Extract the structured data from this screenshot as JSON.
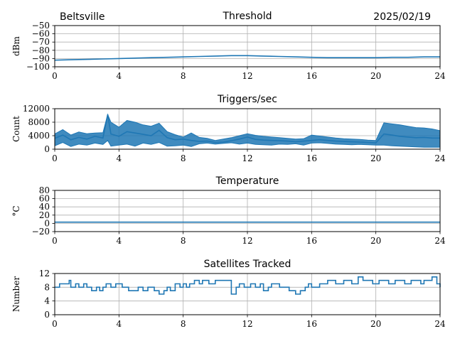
{
  "header": {
    "site": "Beltsville",
    "date": "2025/02/19"
  },
  "series_color": "#1f77b4",
  "grid_color": "#b0b0b0",
  "chart_data": [
    {
      "type": "line",
      "title": "Threshold",
      "xlabel": "",
      "ylabel": "dBm",
      "xlim": [
        0,
        24
      ],
      "ylim": [
        -100,
        -50
      ],
      "xticks": [
        0,
        4,
        8,
        12,
        16,
        20,
        24
      ],
      "yticks": [
        -100,
        -90,
        -80,
        -70,
        -60,
        -50
      ],
      "yticklabels": [
        "−100",
        "−90",
        "−80",
        "−70",
        "−60",
        "−50"
      ],
      "grid": true,
      "x": [
        0,
        1,
        2,
        3,
        4,
        5,
        6,
        7,
        8,
        9,
        10,
        11,
        12,
        13,
        14,
        15,
        16,
        17,
        18,
        19,
        20,
        21,
        22,
        23,
        24
      ],
      "y": [
        -92,
        -91.5,
        -91,
        -90.5,
        -90,
        -89.5,
        -89,
        -88.5,
        -88,
        -87.5,
        -87,
        -86.5,
        -86.5,
        -87,
        -87.5,
        -88,
        -88.5,
        -89,
        -89,
        -89,
        -89,
        -88.5,
        -88.5,
        -88,
        -88
      ]
    },
    {
      "type": "line",
      "title": "Triggers/sec",
      "xlabel": "",
      "ylabel": "Count",
      "xlim": [
        0,
        24
      ],
      "ylim": [
        0,
        12000
      ],
      "xticks": [
        0,
        4,
        8,
        12,
        16,
        20,
        24
      ],
      "yticks": [
        0,
        4000,
        8000,
        12000
      ],
      "yticklabels": [
        "0",
        "4000",
        "8000",
        "12000"
      ],
      "grid": true,
      "x": [
        0,
        0.5,
        1,
        1.5,
        2,
        2.5,
        3,
        3.3,
        3.5,
        4,
        4.5,
        5,
        5.5,
        6,
        6.5,
        7,
        7.5,
        8,
        8.5,
        9,
        9.5,
        10,
        10.5,
        11,
        11.5,
        12,
        12.5,
        13,
        13.5,
        14,
        14.5,
        15,
        15.5,
        16,
        16.5,
        17,
        17.5,
        18,
        18.5,
        19,
        19.5,
        20,
        20.5,
        21,
        21.5,
        22,
        22.5,
        23,
        23.5,
        24
      ],
      "y": [
        3200,
        4200,
        2800,
        3500,
        3000,
        3800,
        3300,
        10300,
        4500,
        3800,
        5200,
        4800,
        4400,
        4000,
        5600,
        3400,
        2800,
        3000,
        2600,
        2300,
        2400,
        2000,
        2100,
        2500,
        3000,
        3600,
        2900,
        2700,
        2600,
        2500,
        2400,
        2200,
        2400,
        2600,
        2800,
        2600,
        2400,
        2300,
        2200,
        2100,
        2000,
        1900,
        4500,
        4200,
        3800,
        3600,
        3400,
        3500,
        3300,
        3300
      ],
      "ymin_band": [
        1000,
        2000,
        800,
        1500,
        1200,
        1800,
        1400,
        2600,
        900,
        1200,
        1500,
        900,
        1800,
        1400,
        2000,
        900,
        1000,
        1200,
        800,
        1600,
        1800,
        1500,
        1700,
        1900,
        1500,
        1800,
        1400,
        1300,
        1200,
        1500,
        1400,
        1600,
        1200,
        1800,
        1900,
        1700,
        1500,
        1400,
        1300,
        1400,
        1300,
        1200,
        1200,
        1000,
        900,
        800,
        700,
        600,
        600,
        600
      ],
      "ymax_band": [
        4500,
        5800,
        4200,
        5100,
        4600,
        4800,
        4900,
        10300,
        8000,
        6500,
        8500,
        8000,
        7200,
        6800,
        7700,
        5200,
        4300,
        3600,
        4800,
        3500,
        3200,
        2600,
        3000,
        3400,
        4000,
        4600,
        4100,
        3800,
        3600,
        3400,
        3200,
        3000,
        3100,
        4200,
        3900,
        3600,
        3300,
        3100,
        3000,
        2900,
        2700,
        2600,
        7800,
        7500,
        7200,
        6800,
        6400,
        6300,
        6000,
        5500
      ]
    },
    {
      "type": "line",
      "title": "Temperature",
      "xlabel": "",
      "ylabel": "°C",
      "xlim": [
        0,
        24
      ],
      "ylim": [
        -20,
        80
      ],
      "xticks": [
        0,
        4,
        8,
        12,
        16,
        20,
        24
      ],
      "yticks": [
        -20,
        0,
        20,
        40,
        60,
        80
      ],
      "yticklabels": [
        "−20",
        "0",
        "20",
        "40",
        "60",
        "80"
      ],
      "grid": true,
      "x": [
        0,
        24
      ],
      "y": [
        3,
        3
      ]
    },
    {
      "type": "line",
      "title": "Satellites Tracked",
      "xlabel": "",
      "ylabel": "Number",
      "xlim": [
        0,
        24
      ],
      "ylim": [
        0,
        12
      ],
      "xticks": [
        0,
        4,
        8,
        12,
        16,
        20,
        24
      ],
      "yticks": [
        0,
        4,
        8,
        12
      ],
      "yticklabels": [
        "0",
        "4",
        "8",
        "12"
      ],
      "grid": true,
      "step": true,
      "x": [
        0,
        0.3,
        0.6,
        0.9,
        1.0,
        1.3,
        1.5,
        1.8,
        2.0,
        2.3,
        2.6,
        2.8,
        3.0,
        3.2,
        3.5,
        3.8,
        4.2,
        4.6,
        5.2,
        5.5,
        5.8,
        6.2,
        6.5,
        6.8,
        7.0,
        7.2,
        7.5,
        7.8,
        8.0,
        8.2,
        8.4,
        8.7,
        9.0,
        9.2,
        9.6,
        10.0,
        11.0,
        11.3,
        11.5,
        11.8,
        12.2,
        12.5,
        12.8,
        13.0,
        13.3,
        13.5,
        14.0,
        14.6,
        15.0,
        15.3,
        15.6,
        15.8,
        16.0,
        16.5,
        17.0,
        17.5,
        18.0,
        18.5,
        18.9,
        19.2,
        19.8,
        20.2,
        20.8,
        21.2,
        21.8,
        22.2,
        22.8,
        23.0,
        23.5,
        23.8,
        24.0
      ],
      "y": [
        8,
        9,
        9,
        10,
        8,
        9,
        8,
        9,
        8,
        7,
        8,
        7,
        8,
        9,
        8,
        9,
        8,
        7,
        8,
        7,
        8,
        7,
        6,
        7,
        8,
        7,
        9,
        8,
        9,
        8,
        9,
        10,
        9,
        10,
        9,
        10,
        6,
        8,
        9,
        8,
        9,
        8,
        9,
        7,
        8,
        9,
        8,
        7,
        6,
        7,
        8,
        9,
        8,
        9,
        10,
        9,
        10,
        9,
        11,
        10,
        9,
        10,
        9,
        10,
        9,
        10,
        9,
        10,
        11,
        9,
        8
      ]
    }
  ]
}
